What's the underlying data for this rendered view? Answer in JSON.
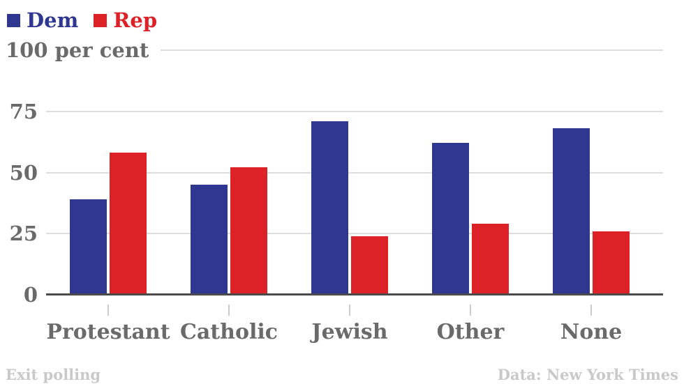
{
  "legend": {
    "items": [
      {
        "label": "Dem",
        "color": "#2f3790"
      },
      {
        "label": "Rep",
        "color": "#dc2127"
      }
    ]
  },
  "chart_data": {
    "type": "bar",
    "categories": [
      "Protestant",
      "Catholic",
      "Jewish",
      "Other",
      "None"
    ],
    "series": [
      {
        "name": "Dem",
        "color": "#2f3790",
        "values": [
          39,
          45,
          71,
          62,
          68
        ]
      },
      {
        "name": "Rep",
        "color": "#dc2127",
        "values": [
          58,
          52,
          24,
          29,
          26
        ]
      }
    ],
    "yticks": [
      {
        "value": 100,
        "label": "100 per cent"
      },
      {
        "value": 75,
        "label": "75"
      },
      {
        "value": 50,
        "label": "50"
      },
      {
        "value": 25,
        "label": "25"
      },
      {
        "value": 0,
        "label": "0"
      }
    ],
    "ylim": [
      0,
      100
    ],
    "xlabel": "",
    "ylabel": "per cent",
    "grid": true,
    "legend_position": "top-left",
    "colors": {
      "axis_text": "#6a6a6a",
      "gridline": "#dedede",
      "baseline": "#4a4a4a",
      "footer_text": "#c9c9c9"
    }
  },
  "footer": {
    "left": "Exit polling",
    "right": "Data: New York Times"
  }
}
